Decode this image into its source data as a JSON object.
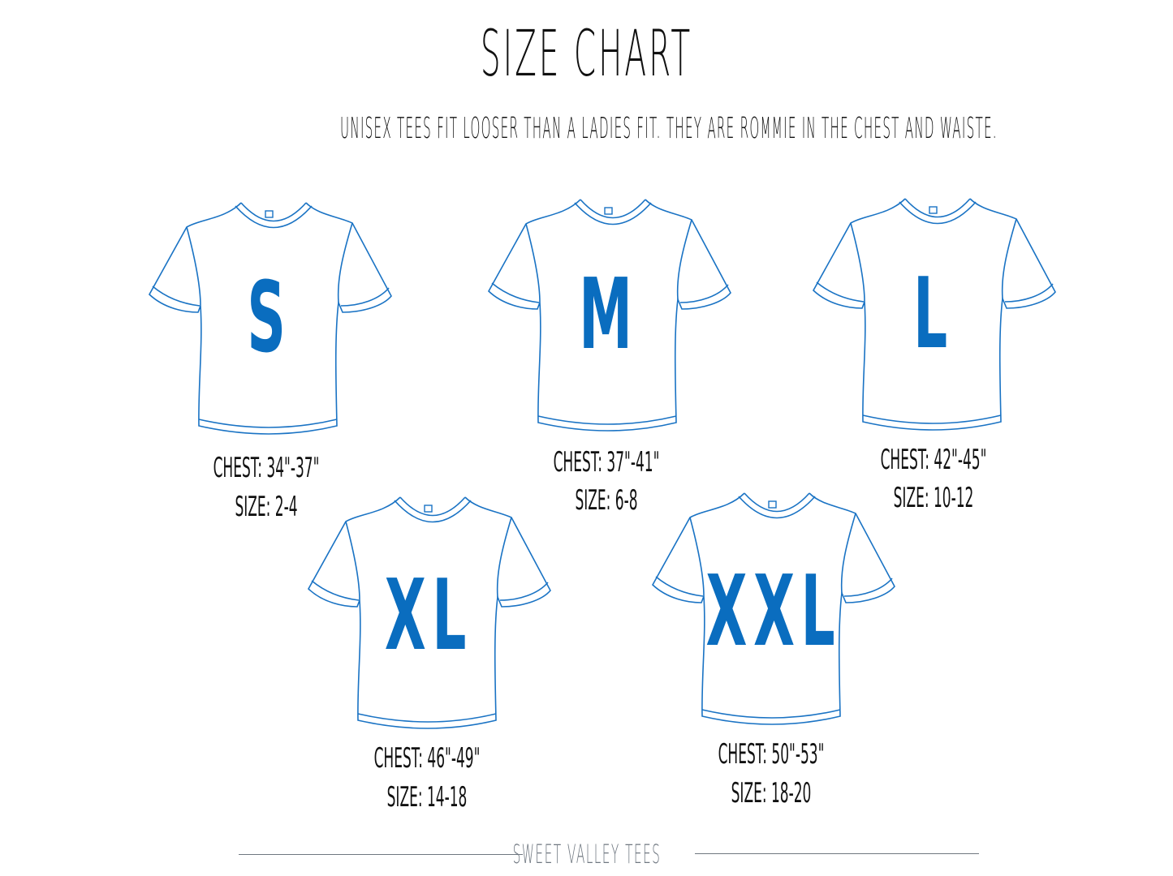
{
  "title": "SIZE CHART",
  "subtitle": "UNISEX TEES FIT LOOSER THAN A LADIES FIT.  THEY ARE ROMMIE IN THE CHEST AND WAISTE.",
  "colors": {
    "shirt_outline": "#1a73c4",
    "size_letter": "#0a6dbf",
    "text": "#111111",
    "footer": "#6f7780"
  },
  "sizes": [
    {
      "letter": "S",
      "chest": "CHEST: 34\"-37\"",
      "size": "SIZE: 2-4"
    },
    {
      "letter": "M",
      "chest": "CHEST: 37\"-41\"",
      "size": "SIZE: 6-8"
    },
    {
      "letter": "L",
      "chest": "CHEST: 42\"-45\"",
      "size": "SIZE: 10-12"
    },
    {
      "letter": "XL",
      "chest": "CHEST: 46\"-49\"",
      "size": "SIZE: 14-18"
    },
    {
      "letter": "XXL",
      "chest": "CHEST: 50\"-53\"",
      "size": "SIZE: 18-20"
    }
  ],
  "footer": "SWEET VALLEY TEES"
}
